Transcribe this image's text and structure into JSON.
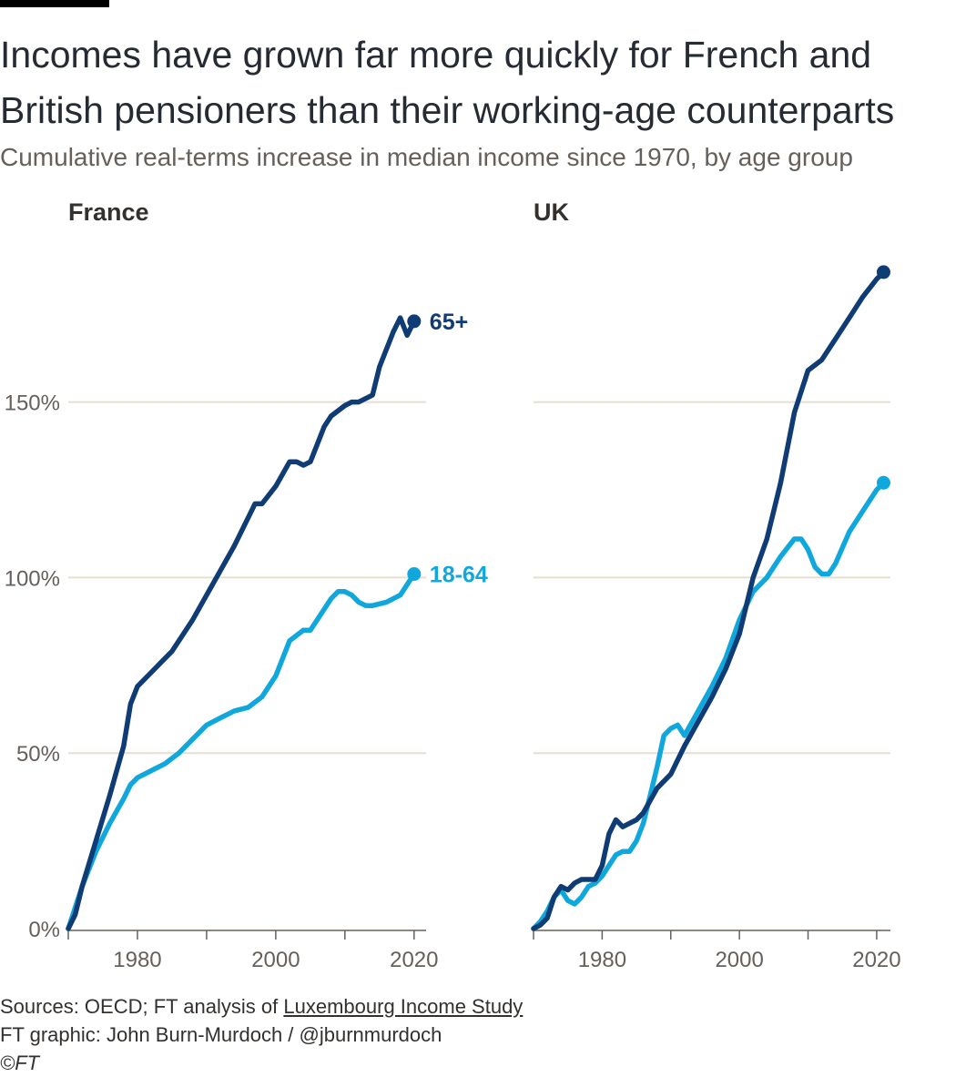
{
  "title": "Incomes have grown far more quickly for French and British pensioners than their working-age counterparts",
  "subtitle": "Cumulative real-terms increase in median income since 1970, by age group",
  "footer": {
    "sources_prefix": "Sources: OECD; FT analysis of ",
    "sources_link": "Luxembourg Income Study",
    "graphic_credit": "FT graphic: John Burn-Murdoch / @jburnmurdoch",
    "copyright": "©FT"
  },
  "colors": {
    "age_65_plus": "#0f3c74",
    "age_18_64": "#10a8dc",
    "grid": "#e6dfd0",
    "axis": "#66605c"
  },
  "chart_data": [
    {
      "type": "line",
      "title": "France",
      "xlabel": "",
      "ylabel": "",
      "xlim": [
        1970,
        2022
      ],
      "ylim": [
        0,
        180
      ],
      "x_ticks": [
        1980,
        2000,
        2020
      ],
      "y_ticks": [
        0,
        50,
        100,
        150
      ],
      "y_tick_labels": [
        "0%",
        "50%",
        "100%",
        "150%"
      ],
      "grid": true,
      "series": [
        {
          "name": "65+",
          "color": "#0f3c74",
          "x": [
            1970,
            1971,
            1972,
            1974,
            1976,
            1978,
            1979,
            1980,
            1982,
            1984,
            1985,
            1988,
            1990,
            1992,
            1994,
            1996,
            1997,
            1998,
            2000,
            2002,
            2003,
            2004,
            2005,
            2007,
            2008,
            2010,
            2011,
            2012,
            2014,
            2015,
            2016,
            2017,
            2018,
            2019,
            2020
          ],
          "y": [
            0,
            4,
            12,
            25,
            38,
            52,
            64,
            69,
            73,
            77,
            79,
            88,
            95,
            102,
            109,
            117,
            121,
            121,
            126,
            133,
            133,
            132,
            133,
            143,
            146,
            149,
            150,
            150,
            152,
            160,
            165,
            170,
            174,
            169,
            173
          ]
        },
        {
          "name": "18-64",
          "color": "#10a8dc",
          "x": [
            1970,
            1972,
            1974,
            1976,
            1978,
            1979,
            1980,
            1982,
            1984,
            1986,
            1988,
            1990,
            1992,
            1994,
            1996,
            1998,
            2000,
            2001,
            2002,
            2004,
            2005,
            2007,
            2008,
            2009,
            2010,
            2011,
            2012,
            2013,
            2014,
            2016,
            2018,
            2019,
            2020
          ],
          "y": [
            0,
            12,
            22,
            30,
            37,
            41,
            43,
            45,
            47,
            50,
            54,
            58,
            60,
            62,
            63,
            66,
            72,
            77,
            82,
            85,
            85,
            91,
            94,
            96,
            96,
            95,
            93,
            92,
            92,
            93,
            95,
            98,
            101
          ]
        }
      ]
    },
    {
      "type": "line",
      "title": "UK",
      "xlabel": "",
      "ylabel": "",
      "xlim": [
        1970,
        2022
      ],
      "ylim": [
        0,
        180
      ],
      "x_ticks": [
        1980,
        2000,
        2020
      ],
      "y_ticks": [
        0,
        50,
        100,
        150
      ],
      "grid": true,
      "series": [
        {
          "name": "65+",
          "color": "#0f3c74",
          "x": [
            1970,
            1971,
            1972,
            1973,
            1974,
            1975,
            1976,
            1977,
            1978,
            1979,
            1980,
            1981,
            1982,
            1983,
            1984,
            1985,
            1986,
            1988,
            1990,
            1992,
            1994,
            1996,
            1998,
            2000,
            2002,
            2004,
            2006,
            2008,
            2010,
            2012,
            2014,
            2016,
            2018,
            2020,
            2021
          ],
          "y": [
            0,
            1,
            3,
            9,
            12,
            11,
            13,
            14,
            14,
            14,
            18,
            27,
            31,
            29,
            30,
            31,
            33,
            40,
            44,
            52,
            59,
            66,
            74,
            84,
            100,
            111,
            127,
            147,
            159,
            162,
            168,
            174,
            180,
            185,
            187
          ]
        },
        {
          "name": "18-64",
          "color": "#10a8dc",
          "x": [
            1970,
            1971,
            1972,
            1973,
            1974,
            1975,
            1976,
            1977,
            1978,
            1979,
            1980,
            1981,
            1982,
            1983,
            1984,
            1985,
            1986,
            1987,
            1988,
            1989,
            1990,
            1991,
            1992,
            1994,
            1996,
            1998,
            2000,
            2002,
            2004,
            2006,
            2008,
            2009,
            2010,
            2011,
            2012,
            2013,
            2014,
            2016,
            2018,
            2020,
            2021
          ],
          "y": [
            0,
            2,
            5,
            9,
            11,
            8,
            7,
            9,
            12,
            13,
            15,
            18,
            21,
            22,
            22,
            25,
            30,
            38,
            46,
            55,
            57,
            58,
            55,
            62,
            69,
            77,
            88,
            96,
            100,
            106,
            111,
            111,
            108,
            103,
            101,
            101,
            104,
            113,
            119,
            125,
            127
          ]
        }
      ]
    }
  ]
}
